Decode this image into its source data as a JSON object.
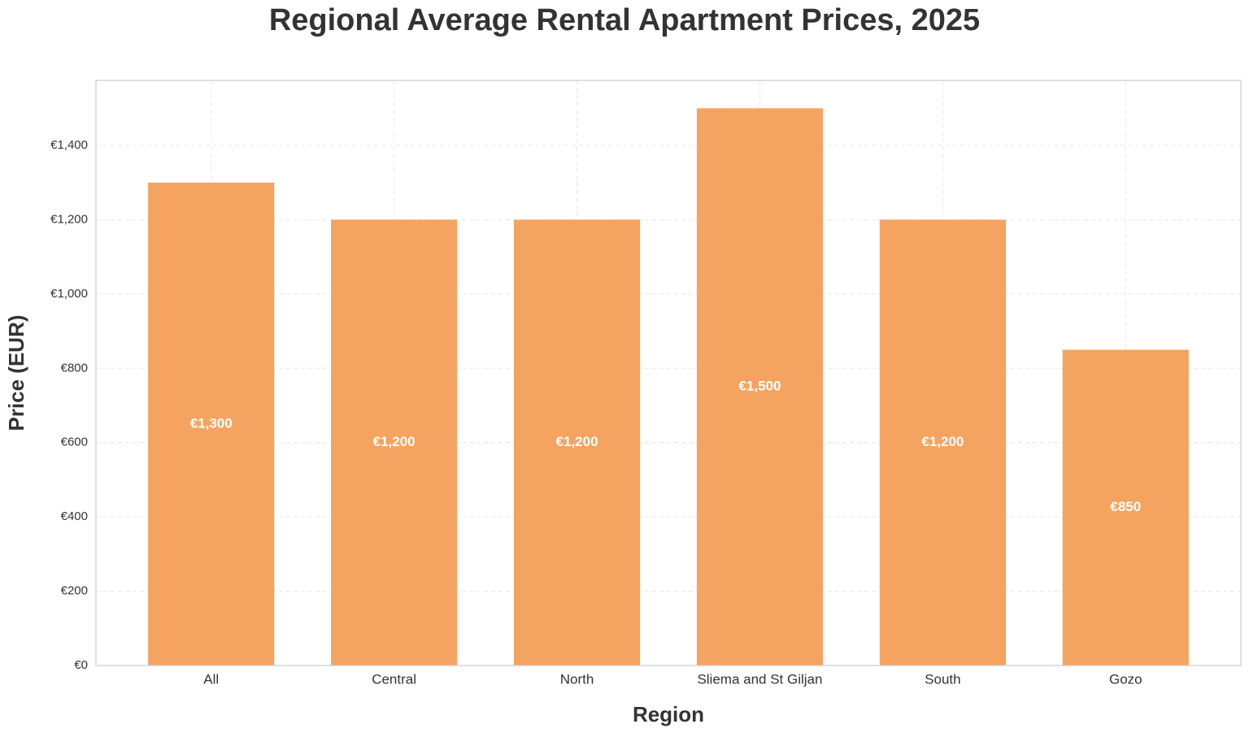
{
  "chart_data": {
    "type": "bar",
    "title": "Regional Average Rental Apartment Prices, 2025",
    "x_label": "Region",
    "y_label": "Price (EUR)",
    "categories": [
      "All",
      "Central",
      "North",
      "Sliema and St Giljan",
      "South",
      "Gozo"
    ],
    "values": [
      1300,
      1200,
      1200,
      1500,
      1200,
      850
    ],
    "value_labels": [
      "€1,300",
      "€1,200",
      "€1,200",
      "€1,500",
      "€1,200",
      "€850"
    ],
    "color": "#f4a460",
    "ylim": [
      0,
      1575
    ],
    "yticks": [
      {
        "value": 0,
        "label": "€0"
      },
      {
        "value": 200,
        "label": "€200"
      },
      {
        "value": 400,
        "label": "€400"
      },
      {
        "value": 600,
        "label": "€600"
      },
      {
        "value": 800,
        "label": "€800"
      },
      {
        "value": 1000,
        "label": "€1,000"
      },
      {
        "value": 1200,
        "label": "€1,200"
      },
      {
        "value": 1400,
        "label": "€1,400"
      }
    ],
    "grid": true
  }
}
